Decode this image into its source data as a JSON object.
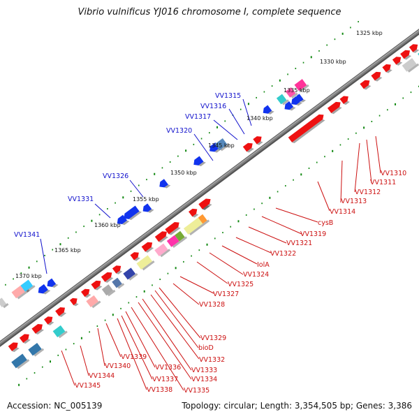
{
  "title": "Vibrio vulnificus YJ016 chromosome I, complete sequence",
  "footer": {
    "accession": "Accession: NC_005139",
    "topology": "Topology: circular; Length: 3,354,505 bp; Genes: 3,386"
  },
  "scale_labels": [
    "1325 kbp",
    "1330 kbp",
    "1335 kbp",
    "1340 kbp",
    "1345 kbp",
    "1350 kbp",
    "1355 kbp",
    "1360 kbp",
    "1365 kbp",
    "1370 kbp"
  ],
  "colors": {
    "backbone": "#808080",
    "forward_genes": "#ee1111",
    "reverse_genes": "#1133ee",
    "tick": "#118811",
    "label_blue": "#1010cc",
    "label_red": "#cc1010"
  },
  "blue_labels": [
    "VV1315",
    "VV1316",
    "VV1317",
    "VV1320",
    "VV1326",
    "VV1331",
    "VV1341"
  ],
  "red_labels": [
    "VV1310",
    "VV1311",
    "VV1312",
    "VV1313",
    "VV1314",
    "cysB",
    "VV1319",
    "VV1321",
    "VV1322",
    "IolA",
    "VV1324",
    "VV1325",
    "VV1327",
    "VV1328",
    "VV1329",
    "bioD",
    "VV1332",
    "VV1333",
    "VV1334",
    "VV1335",
    "VV1336",
    "VV1337",
    "VV1338",
    "VV1339",
    "VV1340",
    "VV1344",
    "VV1345"
  ]
}
